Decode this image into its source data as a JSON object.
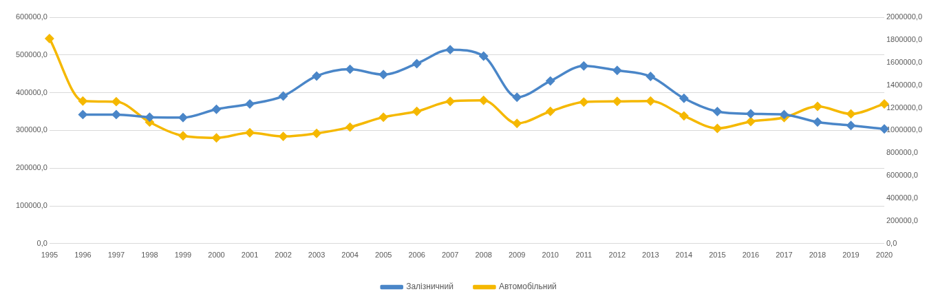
{
  "chart_data": {
    "type": "line",
    "categories": [
      "1995",
      "1996",
      "1997",
      "1998",
      "1999",
      "2000",
      "2001",
      "2002",
      "2003",
      "2004",
      "2005",
      "2006",
      "2007",
      "2008",
      "2009",
      "2010",
      "2011",
      "2012",
      "2013",
      "2014",
      "2015",
      "2016",
      "2017",
      "2018",
      "2019",
      "2020"
    ],
    "series": [
      {
        "name": "Залізничний",
        "color": "#4a86c8",
        "values": [
          null,
          342000,
          342000,
          335000,
          334000,
          356000,
          370000,
          391000,
          444000,
          462000,
          448000,
          477000,
          514000,
          497000,
          388000,
          431000,
          471000,
          459000,
          443000,
          385000,
          350000,
          344000,
          342000,
          322000,
          313000,
          304000
        ]
      },
      {
        "name": "Автомобільний",
        "color": "#f5b800",
        "axis": "y2",
        "values": [
          1812000,
          1260000,
          1254000,
          1073000,
          952000,
          934000,
          980000,
          947000,
          974000,
          1029000,
          1117000,
          1168000,
          1256000,
          1265000,
          1062000,
          1168000,
          1250000,
          1256000,
          1260000,
          1128000,
          1018000,
          1079000,
          1113000,
          1212000,
          1146000,
          1234000
        ]
      }
    ],
    "ylim": [
      0,
      600000
    ],
    "yticks": [
      {
        "value": 0,
        "label": "0,0"
      },
      {
        "value": 100000,
        "label": "100000,0"
      },
      {
        "value": 200000,
        "label": "200000,0"
      },
      {
        "value": 300000,
        "label": "300000,0"
      },
      {
        "value": 400000,
        "label": "400000,0"
      },
      {
        "value": 500000,
        "label": "500000,0"
      },
      {
        "value": 600000,
        "label": "600000,0"
      }
    ],
    "y2lim": [
      0,
      2000000
    ],
    "y2ticks": [
      {
        "value": 0,
        "label": "0,0"
      },
      {
        "value": 200000,
        "label": "200000,0"
      },
      {
        "value": 400000,
        "label": "400000,0"
      },
      {
        "value": 600000,
        "label": "600000,0"
      },
      {
        "value": 800000,
        "label": "800000,0"
      },
      {
        "value": 1000000,
        "label": "1000000,0"
      },
      {
        "value": 1200000,
        "label": "1200000,0"
      },
      {
        "value": 1400000,
        "label": "1400000,0"
      },
      {
        "value": 1600000,
        "label": "1600000,0"
      },
      {
        "value": 1800000,
        "label": "1800000,0"
      },
      {
        "value": 2000000,
        "label": "2000000,0"
      }
    ],
    "grid": "y",
    "legend": "bottom",
    "marker": "diamond",
    "line_style": "solid"
  }
}
